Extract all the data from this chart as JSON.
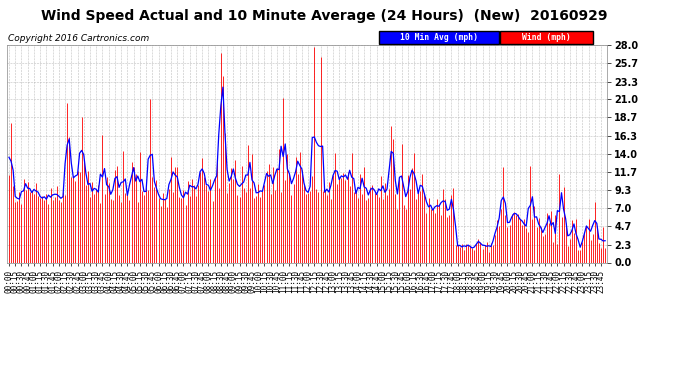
{
  "title": "Wind Speed Actual and 10 Minute Average (24 Hours)  (New)  20160929",
  "copyright": "Copyright 2016 Cartronics.com",
  "legend_labels": [
    "10 Min Avg (mph)",
    "Wind (mph)"
  ],
  "legend_colors": [
    "#0000ff",
    "#ff0000"
  ],
  "yticks": [
    0.0,
    2.3,
    4.7,
    7.0,
    9.3,
    11.7,
    14.0,
    16.3,
    18.7,
    21.0,
    23.3,
    25.7,
    28.0
  ],
  "ylim": [
    0.0,
    28.0
  ],
  "bg_color": "#ffffff",
  "plot_bg_color": "#ffffff",
  "grid_color": "#b0b0b0",
  "title_fontsize": 10,
  "copyright_fontsize": 6.5,
  "wind_color": "#ff0000",
  "avg_color": "#0000ff",
  "tick_fontsize": 7
}
